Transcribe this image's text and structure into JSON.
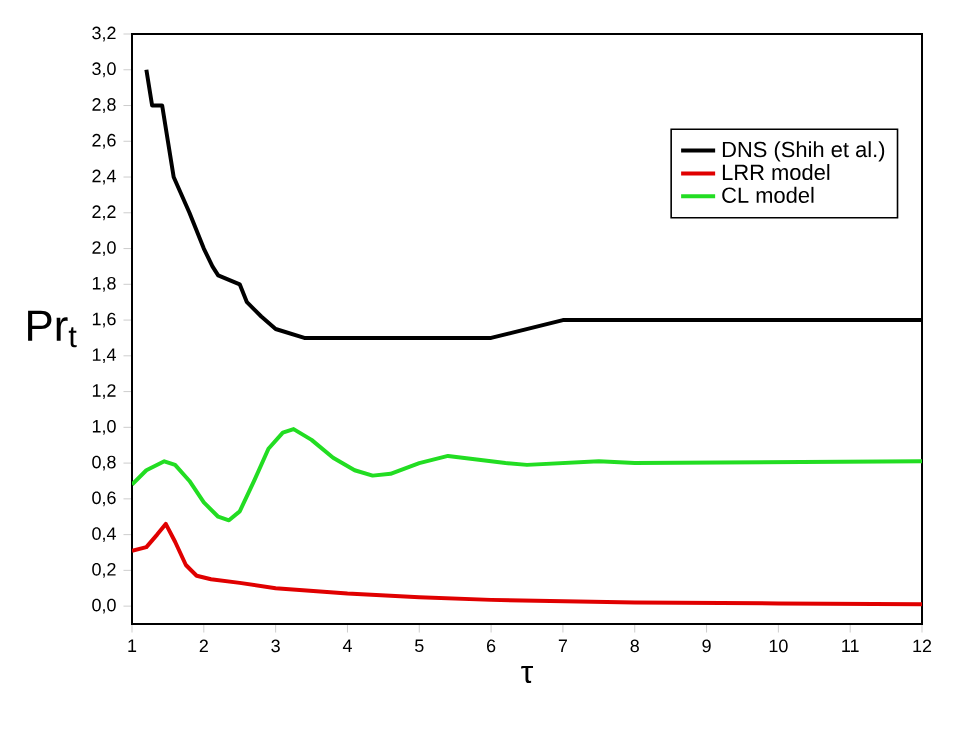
{
  "chart_data": {
    "type": "line",
    "xlabel": "τ",
    "ylabel": "Pr$_{t}$",
    "xlim": [
      1,
      12
    ],
    "ylim": [
      -0.1,
      3.2
    ],
    "xticks": [
      1,
      2,
      3,
      4,
      5,
      6,
      7,
      8,
      9,
      10,
      11,
      12
    ],
    "yticks": [
      {
        "value": 0,
        "label": "0,0"
      },
      {
        "value": 0.2,
        "label": "0,2"
      },
      {
        "value": 0.4,
        "label": "0,4"
      },
      {
        "value": 0.6,
        "label": "0,6"
      },
      {
        "value": 0.8,
        "label": "0,8"
      },
      {
        "value": 1.0,
        "label": "1,0"
      },
      {
        "value": 1.2,
        "label": "1,2"
      },
      {
        "value": 1.4,
        "label": "1,4"
      },
      {
        "value": 1.6,
        "label": "1,6"
      },
      {
        "value": 1.8,
        "label": "1,8"
      },
      {
        "value": 2.0,
        "label": "2,0"
      },
      {
        "value": 2.2,
        "label": "2,2"
      },
      {
        "value": 2.4,
        "label": "2,4"
      },
      {
        "value": 2.6,
        "label": "2,6"
      },
      {
        "value": 2.8,
        "label": "2,8"
      },
      {
        "value": 3.0,
        "label": "3,0"
      },
      {
        "value": 3.2,
        "label": "3,2"
      }
    ],
    "legend": "top right",
    "grid": false,
    "marker": "none",
    "line_style": "solid",
    "series": [
      {
        "name": "DNS (Shih et al.)",
        "color": "#000000",
        "x": [
          1.2,
          1.28,
          1.42,
          1.5,
          1.58,
          1.8,
          2.0,
          2.12,
          2.2,
          2.5,
          2.6,
          2.8,
          3.0,
          3.4,
          6.0,
          7.0,
          12
        ],
        "values": [
          3.0,
          2.8,
          2.8,
          2.6,
          2.4,
          2.2,
          2.0,
          1.9,
          1.85,
          1.8,
          1.7,
          1.62,
          1.55,
          1.5,
          1.5,
          1.6,
          1.6
        ]
      },
      {
        "name": "LRR model",
        "color": "#e00000",
        "x": [
          1,
          1.2,
          1.35,
          1.47,
          1.6,
          1.75,
          1.9,
          2.1,
          2.5,
          3,
          4,
          5,
          6,
          8,
          10,
          12
        ],
        "values": [
          0.31,
          0.33,
          0.4,
          0.46,
          0.36,
          0.23,
          0.17,
          0.15,
          0.13,
          0.1,
          0.07,
          0.05,
          0.035,
          0.02,
          0.015,
          0.01
        ]
      },
      {
        "name": "CL model",
        "color": "#22dd22",
        "x": [
          1,
          1.2,
          1.45,
          1.6,
          1.8,
          2.0,
          2.2,
          2.35,
          2.5,
          2.7,
          2.9,
          3.1,
          3.25,
          3.5,
          3.8,
          4.1,
          4.35,
          4.6,
          5.0,
          5.4,
          5.8,
          6.2,
          6.5,
          7.5,
          8,
          12
        ],
        "values": [
          0.68,
          0.76,
          0.81,
          0.79,
          0.7,
          0.58,
          0.5,
          0.48,
          0.53,
          0.7,
          0.88,
          0.97,
          0.99,
          0.93,
          0.83,
          0.76,
          0.73,
          0.74,
          0.8,
          0.84,
          0.82,
          0.8,
          0.79,
          0.81,
          0.8,
          0.81
        ]
      }
    ]
  }
}
